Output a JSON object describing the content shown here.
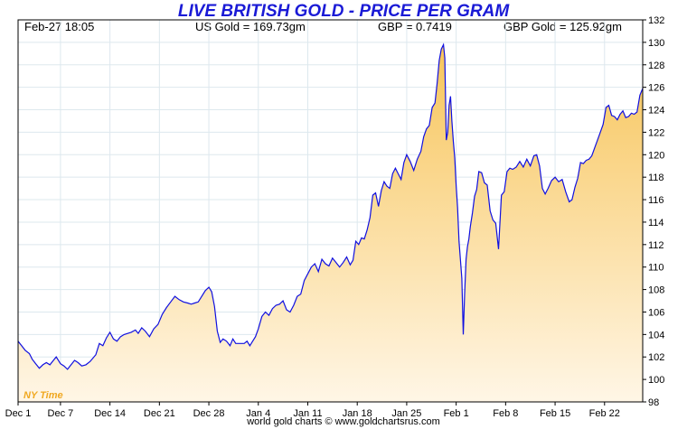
{
  "chart_data": {
    "type": "area",
    "title": "LIVE BRITISH GOLD - PRICE PER GRAM",
    "info": {
      "datetime": "Feb-27  18:05",
      "us_gold": "US Gold = 169.73gm",
      "gbp": "GBP = 0.7419",
      "gbp_gold": "GBP Gold = 125.92gm"
    },
    "watermark": "NY Time",
    "footer": "world gold charts © www.goldchartsrus.com",
    "ylim": [
      98,
      132
    ],
    "yticks": [
      "98",
      "100",
      "102",
      "104",
      "106",
      "108",
      "110",
      "112",
      "114",
      "116",
      "118",
      "120",
      "122",
      "124",
      "126",
      "128",
      "130",
      "132"
    ],
    "xlim": [
      0,
      88.4
    ],
    "xticks": [
      {
        "x": 0,
        "label": "Dec 1"
      },
      {
        "x": 6,
        "label": "Dec 7"
      },
      {
        "x": 13,
        "label": "Dec 14"
      },
      {
        "x": 20,
        "label": "Dec 21"
      },
      {
        "x": 27,
        "label": "Dec 28"
      },
      {
        "x": 34,
        "label": "Jan 4"
      },
      {
        "x": 41,
        "label": "Jan 11"
      },
      {
        "x": 48,
        "label": "Jan 18"
      },
      {
        "x": 55,
        "label": "Jan 25"
      },
      {
        "x": 62,
        "label": "Feb 1"
      },
      {
        "x": 69,
        "label": "Feb 8"
      },
      {
        "x": 76,
        "label": "Feb 15"
      },
      {
        "x": 83,
        "label": "Feb 22"
      }
    ],
    "grid": true,
    "colors": {
      "line": "#1010e0",
      "fill_top": "#f7c55a",
      "fill_bottom": "#fff6e6",
      "grid": "#dde8ee",
      "title": "#1a1ad6",
      "watermark": "#f0a820"
    },
    "series": [
      {
        "values": [
          [
            0,
            103.4
          ],
          [
            0.5,
            103.0
          ],
          [
            1,
            102.6
          ],
          [
            1.6,
            102.3
          ],
          [
            2,
            101.8
          ],
          [
            2.5,
            101.4
          ],
          [
            3,
            101.0
          ],
          [
            3.5,
            101.3
          ],
          [
            4,
            101.5
          ],
          [
            4.5,
            101.3
          ],
          [
            5,
            101.7
          ],
          [
            5.4,
            102.0
          ],
          [
            6,
            101.4
          ],
          [
            6.5,
            101.2
          ],
          [
            7,
            100.9
          ],
          [
            7.5,
            101.3
          ],
          [
            8,
            101.7
          ],
          [
            8.5,
            101.5
          ],
          [
            9,
            101.2
          ],
          [
            9.6,
            101.3
          ],
          [
            10.2,
            101.6
          ],
          [
            11,
            102.2
          ],
          [
            11.5,
            103.2
          ],
          [
            12,
            103.0
          ],
          [
            12.5,
            103.7
          ],
          [
            13,
            104.2
          ],
          [
            13.5,
            103.6
          ],
          [
            14,
            103.4
          ],
          [
            14.5,
            103.8
          ],
          [
            15,
            104.0
          ],
          [
            16,
            104.2
          ],
          [
            16.6,
            104.4
          ],
          [
            17,
            104.1
          ],
          [
            17.5,
            104.6
          ],
          [
            18,
            104.3
          ],
          [
            18.6,
            103.8
          ],
          [
            19.2,
            104.5
          ],
          [
            19.8,
            104.9
          ],
          [
            20.4,
            105.8
          ],
          [
            21,
            106.4
          ],
          [
            21.6,
            106.9
          ],
          [
            22.2,
            107.4
          ],
          [
            22.8,
            107.1
          ],
          [
            23.4,
            106.9
          ],
          [
            24,
            106.8
          ],
          [
            24.5,
            106.7
          ],
          [
            25,
            106.8
          ],
          [
            25.5,
            106.9
          ],
          [
            26,
            107.4
          ],
          [
            26.5,
            107.9
          ],
          [
            27,
            108.2
          ],
          [
            27.4,
            107.8
          ],
          [
            27.8,
            106.5
          ],
          [
            28.2,
            104.3
          ],
          [
            28.6,
            103.3
          ],
          [
            29,
            103.6
          ],
          [
            29.5,
            103.4
          ],
          [
            30,
            103.0
          ],
          [
            30.4,
            103.6
          ],
          [
            30.8,
            103.2
          ],
          [
            31.4,
            103.2
          ],
          [
            32,
            103.2
          ],
          [
            32.4,
            103.4
          ],
          [
            32.8,
            103.0
          ],
          [
            33.2,
            103.4
          ],
          [
            33.6,
            103.8
          ],
          [
            34,
            104.5
          ],
          [
            34.5,
            105.6
          ],
          [
            35,
            106.0
          ],
          [
            35.5,
            105.7
          ],
          [
            36,
            106.3
          ],
          [
            36.5,
            106.6
          ],
          [
            37,
            106.7
          ],
          [
            37.5,
            107.0
          ],
          [
            38,
            106.2
          ],
          [
            38.5,
            106.0
          ],
          [
            39,
            106.6
          ],
          [
            39.5,
            107.4
          ],
          [
            40,
            107.6
          ],
          [
            40.5,
            108.8
          ],
          [
            41,
            109.4
          ],
          [
            41.5,
            110.0
          ],
          [
            42,
            110.3
          ],
          [
            42.5,
            109.6
          ],
          [
            43,
            110.7
          ],
          [
            43.5,
            110.3
          ],
          [
            44,
            110.1
          ],
          [
            44.5,
            110.8
          ],
          [
            45,
            110.4
          ],
          [
            45.5,
            110.0
          ],
          [
            46,
            110.4
          ],
          [
            46.5,
            110.9
          ],
          [
            47,
            110.2
          ],
          [
            47.4,
            110.6
          ],
          [
            47.8,
            112.3
          ],
          [
            48.2,
            112.0
          ],
          [
            48.6,
            112.6
          ],
          [
            49,
            112.5
          ],
          [
            49.4,
            113.3
          ],
          [
            49.8,
            114.4
          ],
          [
            50.2,
            116.4
          ],
          [
            50.6,
            116.6
          ],
          [
            51,
            115.4
          ],
          [
            51.4,
            116.8
          ],
          [
            51.8,
            117.6
          ],
          [
            52.2,
            117.2
          ],
          [
            52.6,
            117.0
          ],
          [
            53,
            118.3
          ],
          [
            53.4,
            118.8
          ],
          [
            53.8,
            118.3
          ],
          [
            54.2,
            117.8
          ],
          [
            54.6,
            119.3
          ],
          [
            55,
            120.0
          ],
          [
            55.5,
            119.4
          ],
          [
            56,
            118.6
          ],
          [
            56.5,
            119.6
          ],
          [
            57,
            120.3
          ],
          [
            57.4,
            121.6
          ],
          [
            57.8,
            122.3
          ],
          [
            58.2,
            122.6
          ],
          [
            58.6,
            124.2
          ],
          [
            59,
            124.6
          ],
          [
            59.3,
            126.3
          ],
          [
            59.6,
            128.4
          ],
          [
            59.9,
            129.4
          ],
          [
            60.2,
            129.8
          ],
          [
            60.4,
            128.6
          ],
          [
            60.6,
            121.3
          ],
          [
            60.8,
            122.0
          ],
          [
            61.0,
            124.4
          ],
          [
            61.2,
            125.2
          ],
          [
            61.4,
            123.0
          ],
          [
            61.6,
            121.2
          ],
          [
            61.8,
            119.7
          ],
          [
            62.0,
            117.3
          ],
          [
            62.2,
            115.3
          ],
          [
            62.4,
            112.3
          ],
          [
            62.6,
            110.7
          ],
          [
            62.8,
            109.0
          ],
          [
            63.0,
            104.0
          ],
          [
            63.2,
            107.6
          ],
          [
            63.4,
            110.7
          ],
          [
            63.6,
            111.8
          ],
          [
            63.8,
            112.5
          ],
          [
            64.0,
            113.6
          ],
          [
            64.3,
            114.8
          ],
          [
            64.6,
            116.3
          ],
          [
            64.9,
            116.9
          ],
          [
            65.2,
            118.5
          ],
          [
            65.6,
            118.4
          ],
          [
            66,
            117.5
          ],
          [
            66.4,
            117.3
          ],
          [
            66.8,
            115.0
          ],
          [
            67.2,
            114.2
          ],
          [
            67.6,
            113.9
          ],
          [
            68,
            111.6
          ],
          [
            68.4,
            116.4
          ],
          [
            68.8,
            116.7
          ],
          [
            69.2,
            118.5
          ],
          [
            69.6,
            118.8
          ],
          [
            70,
            118.7
          ],
          [
            70.5,
            118.9
          ],
          [
            71,
            119.4
          ],
          [
            71.5,
            118.9
          ],
          [
            72,
            119.6
          ],
          [
            72.5,
            119.0
          ],
          [
            73,
            119.9
          ],
          [
            73.4,
            120.0
          ],
          [
            73.8,
            119.0
          ],
          [
            74.2,
            117.0
          ],
          [
            74.6,
            116.5
          ],
          [
            75,
            117.0
          ],
          [
            75.5,
            117.7
          ],
          [
            76,
            118.0
          ],
          [
            76.5,
            117.6
          ],
          [
            77,
            117.8
          ],
          [
            77.5,
            116.7
          ],
          [
            78,
            115.8
          ],
          [
            78.4,
            116.0
          ],
          [
            78.8,
            117.1
          ],
          [
            79.2,
            117.9
          ],
          [
            79.6,
            119.3
          ],
          [
            80,
            119.2
          ],
          [
            80.4,
            119.5
          ],
          [
            80.8,
            119.6
          ],
          [
            81.2,
            119.9
          ],
          [
            81.6,
            120.6
          ],
          [
            82,
            121.3
          ],
          [
            82.4,
            122.0
          ],
          [
            82.8,
            122.7
          ],
          [
            83.2,
            124.2
          ],
          [
            83.6,
            124.4
          ],
          [
            84,
            123.5
          ],
          [
            84.4,
            123.4
          ],
          [
            84.8,
            123.1
          ],
          [
            85.2,
            123.6
          ],
          [
            85.6,
            123.9
          ],
          [
            86,
            123.3
          ],
          [
            86.4,
            123.4
          ],
          [
            86.8,
            123.7
          ],
          [
            87.2,
            123.6
          ],
          [
            87.6,
            123.8
          ],
          [
            88.0,
            125.3
          ],
          [
            88.4,
            125.9
          ]
        ]
      }
    ]
  }
}
